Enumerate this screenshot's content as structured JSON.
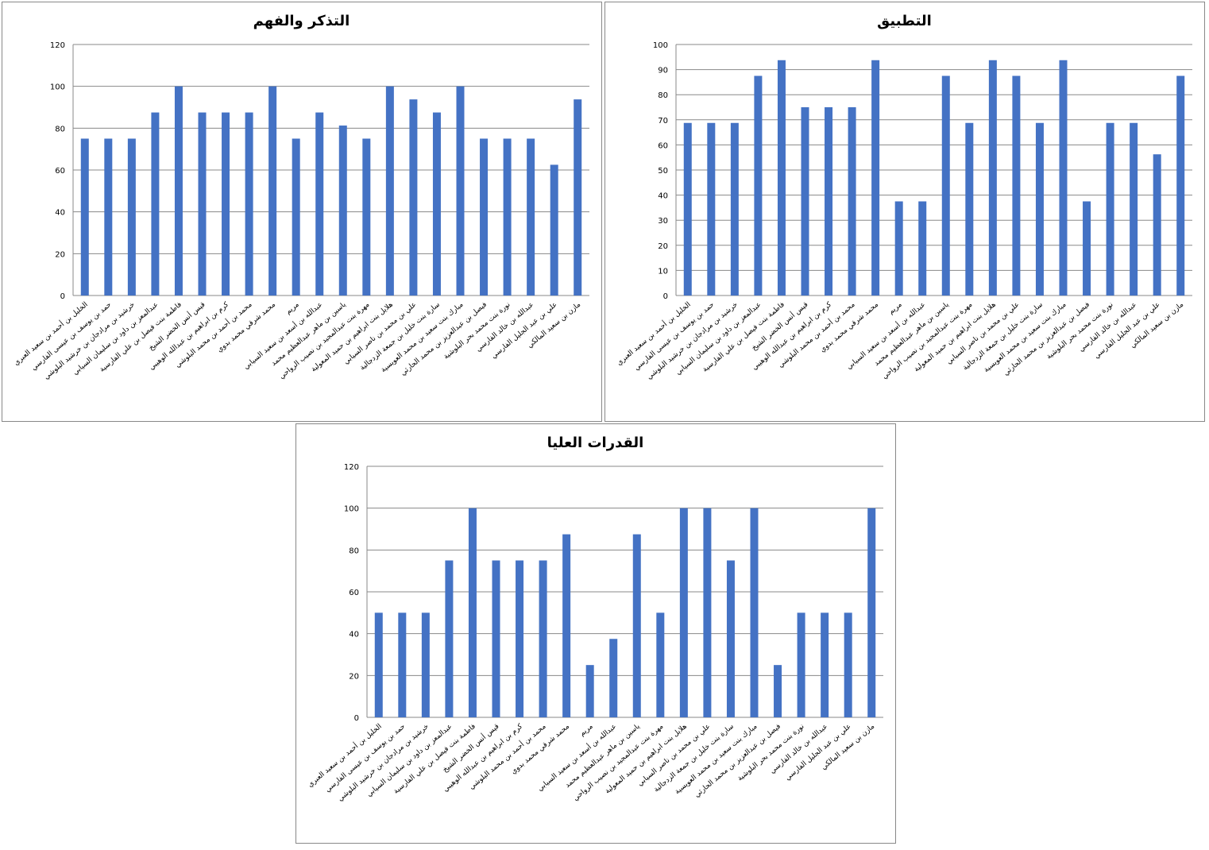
{
  "chart_data": [
    {
      "type": "bar",
      "title": "التذكر والفهم",
      "color": "#4472c4",
      "grid": true,
      "categories": [
        "الخليل بن أحمد بن سعيد العبري",
        "حمد بن يوسف بن عيسى الفارسي",
        "خرشيد بن مرادجان بن خرشيد البلوشي",
        "عبدالمعز بن داود بن سليمان السيابي",
        "فاطمة بنت فيصل بن علي الفارسية",
        "قيس أنس الخضر الشيخ",
        "كرم بن ابراهيم بن عبدالله الوهيبي",
        "محمد بن أحمد بن محمد البلوشي",
        "محمد شرقي محمد بدوي",
        "مريم",
        "عبدالله بن أسعد بن سعيد السيابي",
        "ياسين بن ماهر عبدالعظيم محمد",
        "مهرة بنت عبدالمجيد بن نصيب الرواحي",
        "هلايل بنت ابراهيم بن حميد المعولية",
        "علي بن محمد بن ناصر السيابي",
        "سارة بنت خليل بن جمعة الزدجالية",
        "مبارك بنت سعيد بن محمد العويسية",
        "فيصل بن عبدالعزيز بن محمد الحارثي",
        "نورة بنت محمد بحر البلوشية",
        "عبدالله بن خالد الفارسي",
        "علي بن عبد الجليل الفارسي",
        "مازن بن سعيد المالكي"
      ],
      "values": [
        75,
        75,
        75,
        87.5,
        100,
        87.5,
        87.5,
        87.5,
        100,
        75,
        87.5,
        81.25,
        75,
        100,
        93.75,
        87.5,
        100,
        75,
        75,
        75,
        62.5,
        93.75
      ],
      "ylim": [
        0,
        120
      ],
      "yticks": [
        0,
        20,
        40,
        60,
        80,
        100,
        120
      ]
    },
    {
      "type": "bar",
      "title": "التطبيق",
      "color": "#4472c4",
      "grid": true,
      "categories": [
        "الخليل بن أحمد بن سعيد العبري",
        "حمد بن يوسف بن عيسى الفارسي",
        "خرشيد بن مرادجان بن خرشيد البلوشي",
        "عبدالمعز بن داود بن سليمان السيابي",
        "فاطمة بنت فيصل بن علي الفارسية",
        "قيس أنس الخضر الشيخ",
        "كرم بن ابراهيم بن عبدالله الوهيبي",
        "محمد بن أحمد بن محمد البلوشي",
        "محمد شرقي محمد بدوي",
        "مريم",
        "عبدالله بن أسعد بن سعيد السيابي",
        "ياسين بن ماهر عبدالعظيم محمد",
        "مهرة بنت عبدالمجيد بن نصيب الرواحي",
        "هلايل بنت ابراهيم بن حميد المعولية",
        "علي بن محمد بن ناصر السيابي",
        "سارة بنت خليل بن جمعة الزدجالية",
        "مبارك بنت سعيد بن محمد العويسية",
        "فيصل بن عبدالعزيز بن محمد الحارثي",
        "نورة بنت محمد بحر البلوشية",
        "عبدالله بن خالد الفارسي",
        "علي بن عبد الجليل الفارسي",
        "مازن بن سعيد المالكي"
      ],
      "values": [
        68.75,
        68.75,
        68.75,
        87.5,
        93.75,
        75,
        75,
        75,
        93.75,
        37.5,
        37.5,
        87.5,
        68.75,
        93.75,
        87.5,
        68.75,
        93.75,
        37.5,
        68.75,
        68.75,
        56.25,
        87.5
      ],
      "ylim": [
        0,
        100
      ],
      "yticks": [
        0,
        10,
        20,
        30,
        40,
        50,
        60,
        70,
        80,
        90,
        100
      ]
    },
    {
      "type": "bar",
      "title": "القدرات العليا",
      "color": "#4472c4",
      "grid": true,
      "categories": [
        "الخليل بن أحمد بن سعيد العبري",
        "حمد بن يوسف بن عيسى الفارسي",
        "خرشيد بن مرادجان بن خرشيد البلوشي",
        "عبدالمعز بن داود بن سليمان السيابي",
        "فاطمة بنت فيصل بن علي الفارسية",
        "قيس أنس الخضر الشيخ",
        "كرم بن ابراهيم بن عبدالله الوهيبي",
        "محمد بن أحمد بن محمد البلوشي",
        "محمد شرقي محمد بدوي",
        "مريم",
        "عبدالله بن أسعد بن سعيد السيابي",
        "ياسين بن ماهر عبدالعظيم محمد",
        "مهرة بنت عبدالمجيد بن نصيب الرواحي",
        "هلايل بنت ابراهيم بن حميد المعولية",
        "علي بن محمد بن ناصر السيابي",
        "سارة بنت خليل بن جمعة الزدجالية",
        "مبارك بنت سعيد بن محمد العويسية",
        "فيصل بن عبدالعزيز بن محمد الحارثي",
        "نورة بنت محمد بحر البلوشية",
        "عبدالله بن خالد الفارسي",
        "علي بن عبد الجليل الفارسي",
        "مازن بن سعيد المالكي"
      ],
      "values": [
        50,
        50,
        50,
        75,
        100,
        75,
        75,
        75,
        87.5,
        25,
        37.5,
        87.5,
        50,
        100,
        100,
        75,
        100,
        25,
        50,
        50,
        50,
        100
      ],
      "ylim": [
        0,
        120
      ],
      "yticks": [
        0,
        20,
        40,
        60,
        80,
        100,
        120
      ]
    }
  ]
}
